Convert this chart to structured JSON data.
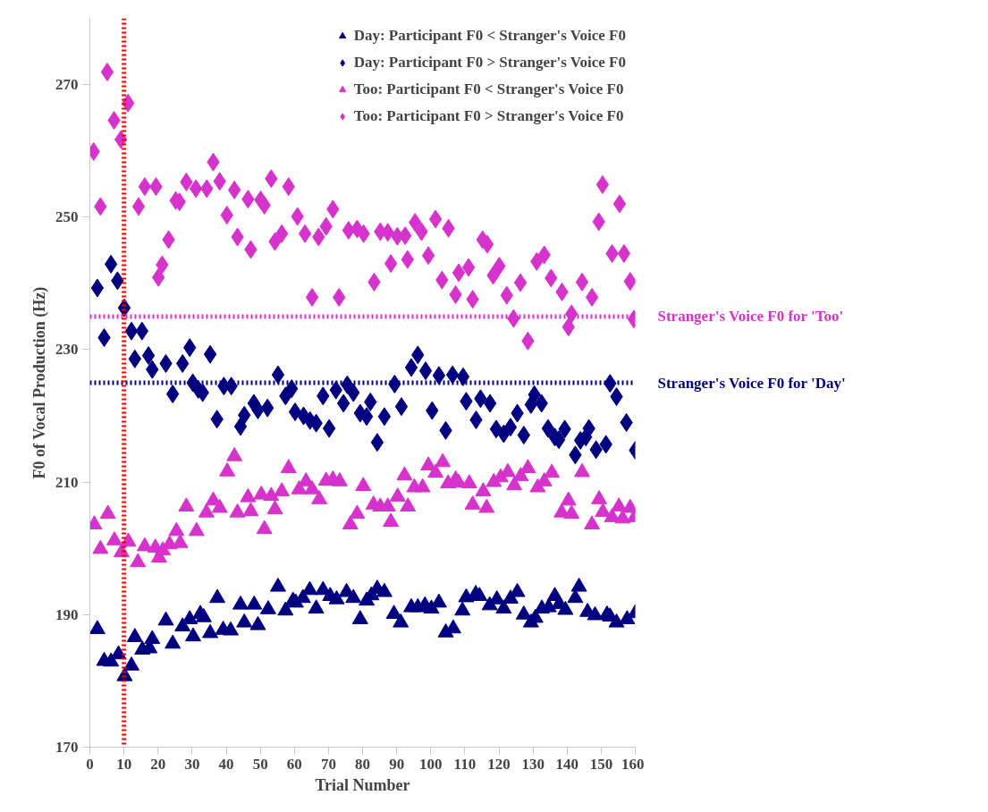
{
  "chart_data": {
    "type": "scatter",
    "xlabel": "Trial Number",
    "ylabel": "F0 of Vocal Production (Hz)",
    "xlim": [
      0,
      160
    ],
    "ylim": [
      170,
      280
    ],
    "xticks": [
      0,
      10,
      20,
      30,
      40,
      50,
      60,
      70,
      80,
      90,
      100,
      110,
      120,
      130,
      140,
      150,
      160
    ],
    "yticks": [
      170,
      190,
      210,
      230,
      250,
      270
    ],
    "grid": false,
    "legend": "top right",
    "series": [
      {
        "name": "Day: Participant F0 < Stranger's Voice F0",
        "color": "#000080",
        "marker": "triangle",
        "x": [
          2.2,
          4.2,
          6.2,
          8.4,
          10.2,
          12.2,
          13.2,
          15.4,
          17.5,
          18.3,
          22.3,
          24.3,
          27.2,
          29.3,
          30.3,
          32.4,
          33.4,
          35.3,
          37.4,
          39.1,
          41.3,
          44.2,
          45.3,
          48.2,
          49.3,
          52.3,
          55.2,
          57.4,
          59.6,
          60.4,
          62.5,
          64.5,
          66.4,
          68.4,
          70.5,
          72.4,
          75.3,
          77.3,
          79.3,
          81.2,
          82.6,
          84.3,
          86.4,
          89.2,
          91.2,
          94.3,
          96.2,
          98.3,
          100.2,
          102.4,
          104.4,
          106.6,
          109.3,
          110.4,
          113.2,
          114.3,
          117.3,
          119.4,
          121.4,
          123.4,
          125.4,
          127.3,
          129.4,
          130.7,
          132.6,
          134.6,
          136.4,
          137.7,
          139.5,
          142.4,
          143.5,
          146.0,
          148.2,
          151.7,
          152.6,
          154.5,
          157.6,
          160
        ],
        "values": [
          187.8,
          183.0,
          182.9,
          184.0,
          180.7,
          182.3,
          186.6,
          184.7,
          184.9,
          186.3,
          189.1,
          185.6,
          188.2,
          189.3,
          186.7,
          190.1,
          189.6,
          187.2,
          192.5,
          187.7,
          187.6,
          191.5,
          188.8,
          191.5,
          188.4,
          190.8,
          194.2,
          190.6,
          192.1,
          191.8,
          192.5,
          193.7,
          190.9,
          193.7,
          192.8,
          192.3,
          193.4,
          192.5,
          189.3,
          192.1,
          192.9,
          193.9,
          193.4,
          190.1,
          188.8,
          191.1,
          191.1,
          191.4,
          190.9,
          191.8,
          187.3,
          187.9,
          190.6,
          192.6,
          193.1,
          192.8,
          191.4,
          192.3,
          190.9,
          192.4,
          193.4,
          190.0,
          188.8,
          189.5,
          190.9,
          191.1,
          192.8,
          191.6,
          190.7,
          192.5,
          194.2,
          190.4,
          189.9,
          190.0,
          189.7,
          188.8,
          189.3,
          190.2
        ]
      },
      {
        "name": "Day: Participant F0 > Stranger's Voice F0",
        "color": "#000080",
        "marker": "diamond",
        "x": [
          2.2,
          4.2,
          6.2,
          8.1,
          10.1,
          12.2,
          13.2,
          15.3,
          17.2,
          18.3,
          22.3,
          24.3,
          27.2,
          29.3,
          30.2,
          31.8,
          33.1,
          35.3,
          37.3,
          39.3,
          41.5,
          44.2,
          45.3,
          48.1,
          49.3,
          52.1,
          55.2,
          57.4,
          59.2,
          60.2,
          62.7,
          64.6,
          66.4,
          68.4,
          70.2,
          72.2,
          74.4,
          75.5,
          77.3,
          79.3,
          81.2,
          82.3,
          84.3,
          86.4,
          89.4,
          91.4,
          94.3,
          96.2,
          98.5,
          100.4,
          102.4,
          104.4,
          106.4,
          109.5,
          110.4,
          113.3,
          114.6,
          117.4,
          119.2,
          121.4,
          123.4,
          125.4,
          127.3,
          129.4,
          130.4,
          132.5,
          134.4,
          136.4,
          137.6,
          139.3,
          142.4,
          143.9,
          145.5,
          146.4,
          148.5,
          151.4,
          152.6,
          154.5,
          157.4,
          160
        ],
        "values": [
          239.3,
          231.8,
          242.9,
          240.4,
          236.3,
          232.8,
          228.6,
          232.8,
          229.1,
          227.0,
          227.9,
          223.3,
          227.9,
          230.3,
          225.0,
          224.0,
          223.5,
          229.3,
          219.5,
          224.5,
          224.5,
          218.4,
          220.1,
          221.9,
          220.9,
          221.2,
          226.2,
          223.0,
          224.1,
          220.6,
          220.0,
          219.3,
          218.9,
          223.0,
          218.1,
          223.9,
          221.9,
          224.7,
          223.5,
          220.4,
          219.9,
          222.1,
          216.0,
          219.9,
          224.8,
          221.4,
          227.3,
          229.2,
          226.8,
          220.8,
          226.1,
          217.8,
          226.2,
          225.9,
          222.2,
          219.4,
          222.6,
          221.9,
          218.0,
          217.3,
          218.3,
          220.4,
          217.1,
          221.7,
          223.2,
          221.9,
          218.1,
          216.8,
          216.4,
          218.0,
          214.1,
          216.3,
          216.8,
          218.1,
          214.9,
          215.7,
          224.9,
          222.9,
          219.0,
          214.8
        ]
      },
      {
        "name": "Too: Participant F0 < Stranger's Voice F0",
        "color": "#d633cc",
        "marker": "triangle",
        "x": [
          1.3,
          3.1,
          5.3,
          7.2,
          9.3,
          11.3,
          14.1,
          16.1,
          19.2,
          20.3,
          21.4,
          23.4,
          25.4,
          26.5,
          28.3,
          31.3,
          34.2,
          36.2,
          38.1,
          40.3,
          42.4,
          43.3,
          46.4,
          47.2,
          50.3,
          51.2,
          53.2,
          54.3,
          56.3,
          58.3,
          61.4,
          63.4,
          65.2,
          67.3,
          69.3,
          71.3,
          73.3,
          76.4,
          78.4,
          80.2,
          83.2,
          85.2,
          87.4,
          88.3,
          90.3,
          92.3,
          93.3,
          95.2,
          97.6,
          99.3,
          101.4,
          103.5,
          105.1,
          107.3,
          108.2,
          111.3,
          112.3,
          115.4,
          116.4,
          118.5,
          120.5,
          122.6,
          124.5,
          126.4,
          128.5,
          131.4,
          133.3,
          135.5,
          138.4,
          140.4,
          141.3,
          144.4,
          147.3,
          149.4,
          150.5,
          153.2,
          155.2,
          156.3,
          158.5,
          159.8
        ],
        "values": [
          203.6,
          199.9,
          205.2,
          201.2,
          199.4,
          201.0,
          197.9,
          200.3,
          200.1,
          198.6,
          199.7,
          200.6,
          202.6,
          200.8,
          206.3,
          202.6,
          205.4,
          207.2,
          206.1,
          211.6,
          213.9,
          205.4,
          207.7,
          205.6,
          208.1,
          202.9,
          207.9,
          205.9,
          208.6,
          212.1,
          208.9,
          210.1,
          208.9,
          207.4,
          210.2,
          210.4,
          210.1,
          203.6,
          205.2,
          209.4,
          206.6,
          206.3,
          206.3,
          204.0,
          207.8,
          211.0,
          206.3,
          209.2,
          209.2,
          212.5,
          211.4,
          213.0,
          209.8,
          210.4,
          209.9,
          209.8,
          206.6,
          208.6,
          206.1,
          210.0,
          210.7,
          211.5,
          209.5,
          210.9,
          212.1,
          209.2,
          210.1,
          211.4,
          205.4,
          207.2,
          205.2,
          211.5,
          203.6,
          207.4,
          205.5,
          204.7,
          206.3,
          204.5,
          206.1,
          204.7
        ]
      },
      {
        "name": "Too: Participant F0 > Stranger's Voice F0",
        "color": "#d633cc",
        "marker": "diamond",
        "x": [
          1.1,
          3.1,
          5.1,
          7.1,
          9.1,
          11.2,
          14.3,
          16.1,
          19.4,
          20.1,
          21.2,
          23.1,
          25.2,
          26.3,
          28.3,
          31.1,
          34.3,
          36.2,
          38.1,
          40.2,
          42.4,
          43.3,
          46.4,
          47.2,
          50.1,
          51.2,
          53.2,
          54.3,
          56.3,
          58.3,
          60.9,
          63.1,
          65.2,
          67.1,
          69.3,
          71.3,
          73.1,
          75.9,
          78.4,
          80.3,
          83.4,
          85.2,
          87.4,
          88.3,
          90.2,
          92.5,
          93.2,
          95.4,
          97.3,
          99.3,
          101.4,
          103.3,
          105.2,
          107.3,
          108.2,
          111.1,
          112.3,
          115.2,
          116.6,
          118.3,
          120.1,
          122.3,
          124.3,
          126.3,
          128.5,
          131.1,
          133.3,
          135.3,
          138.5,
          140.4,
          141.3,
          144.4,
          147.3,
          149.3,
          150.4,
          153.2,
          155.4,
          156.7,
          158.5,
          159.6
        ],
        "values": [
          259.9,
          251.6,
          271.9,
          264.6,
          261.7,
          267.2,
          251.6,
          254.6,
          254.6,
          240.9,
          242.8,
          246.6,
          252.5,
          252.3,
          255.3,
          254.3,
          254.3,
          258.3,
          255.4,
          250.3,
          254.1,
          247.0,
          252.7,
          245.1,
          252.6,
          251.8,
          255.8,
          246.3,
          247.5,
          254.6,
          250.1,
          247.5,
          237.9,
          247.0,
          248.6,
          251.2,
          237.9,
          248.0,
          248.2,
          247.5,
          240.2,
          247.8,
          247.7,
          243.0,
          247.1,
          247.2,
          243.6,
          249.2,
          247.8,
          244.2,
          249.7,
          240.5,
          248.3,
          238.3,
          241.6,
          242.4,
          237.6,
          246.6,
          245.9,
          241.2,
          242.6,
          238.2,
          234.7,
          240.1,
          231.3,
          243.3,
          244.3,
          240.8,
          238.7,
          233.4,
          235.4,
          240.2,
          237.9,
          249.3,
          254.9,
          244.5,
          252.0,
          244.5,
          240.3,
          234.6
        ]
      }
    ],
    "ref_lines": [
      {
        "axis": "y",
        "value": 235,
        "label": "Stranger's Voice F0 for 'Too'",
        "color": "#d633cc",
        "line_style": "dotted"
      },
      {
        "axis": "y",
        "value": 225,
        "label": "Stranger's Voice F0 for 'Day'",
        "color": "#000080",
        "line_style": "dotted"
      },
      {
        "axis": "x",
        "value": 10,
        "label": null,
        "color": "#ee0000",
        "line_style": "dotted"
      }
    ]
  }
}
